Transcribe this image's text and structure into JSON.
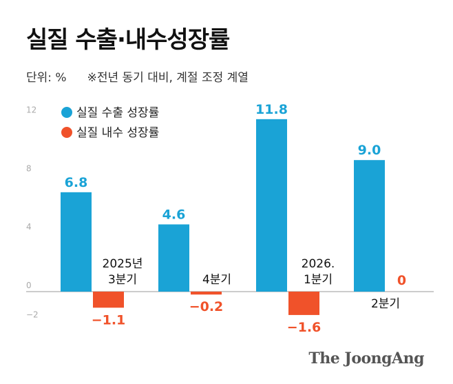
{
  "title": "실질 수출·내수성장률",
  "unit": "단위: %",
  "note": "※전년 동기 대비, 계절 조정 계열",
  "brand": "The JoongAng",
  "colors": {
    "export": "#1aa3d6",
    "domestic": "#f0522a",
    "axis": "#9a9a9a",
    "tick": "#aaaaaa"
  },
  "chart_data": {
    "type": "bar",
    "categories": [
      "2025년\n3분기",
      "4분기",
      "2026.\n1분기",
      "2분기"
    ],
    "series": [
      {
        "name": "실질 수출 성장률",
        "values": [
          6.8,
          4.6,
          11.8,
          9.0
        ],
        "labels": [
          "6.8",
          "4.6",
          "11.8",
          "9.0"
        ]
      },
      {
        "name": "실질 내수 성장률",
        "values": [
          -1.1,
          -0.2,
          -1.6,
          0
        ],
        "labels": [
          "−1.1",
          "−0.2",
          "−1.6",
          "0"
        ]
      }
    ],
    "yticks": [
      12,
      8,
      4,
      0,
      -2
    ],
    "ytick_labels": [
      "12",
      "8",
      "4",
      "0",
      "−2"
    ],
    "ylim": [
      -2,
      12
    ],
    "legend": "top-left"
  }
}
